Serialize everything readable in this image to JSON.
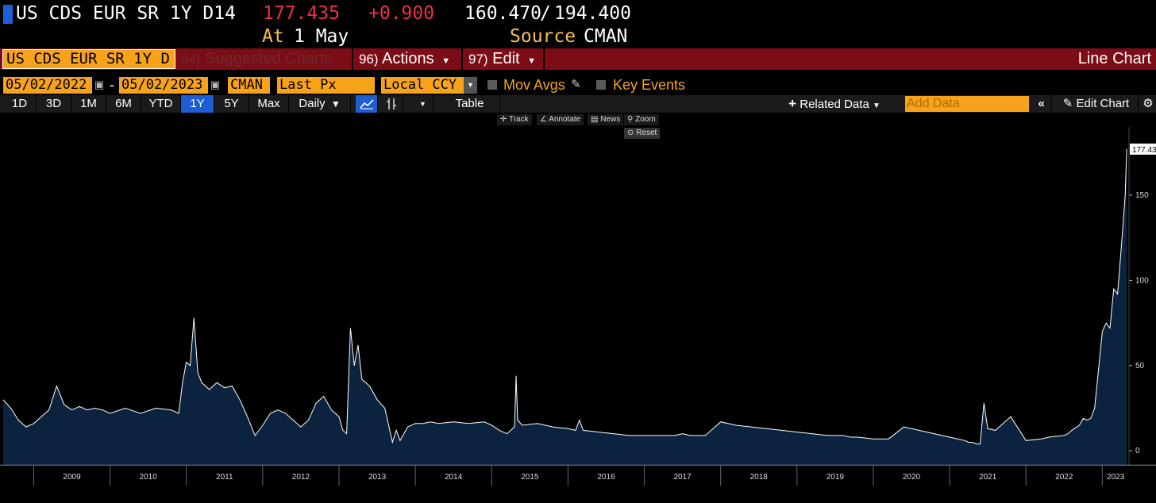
{
  "header": {
    "security": "US CDS EUR SR 1Y D14",
    "last_price": "177.435",
    "change": "+0.900",
    "range_low": "160.470",
    "range_sep": "/",
    "range_high": "194.400",
    "at_label": "At",
    "at_date": "1 May",
    "source_label": "Source",
    "source_value": "CMAN"
  },
  "toolbar1": {
    "ticker_field": "US CDS EUR SR 1Y D",
    "suggested_num": "94)",
    "suggested_label": "Suggested Charts",
    "actions_num": "96)",
    "actions_label": "Actions",
    "edit_num": "97)",
    "edit_label": "Edit",
    "chart_type": "Line Chart"
  },
  "toolbar2": {
    "start_date": "05/02/2022",
    "dash": "-",
    "end_date": "05/02/2023",
    "source": "CMAN",
    "field": "Last Px",
    "currency": "Local CCY",
    "mov_avgs": "Mov Avgs",
    "key_events": "Key Events"
  },
  "toolbar3": {
    "periods": [
      "1D",
      "3D",
      "1M",
      "6M",
      "YTD",
      "1Y",
      "5Y",
      "Max"
    ],
    "active_period": "1Y",
    "frequency": "Daily",
    "table": "Table",
    "related_data": "Related Data",
    "add_data_placeholder": "Add Data",
    "edit_chart": "Edit Chart"
  },
  "chart_controls": {
    "track": "Track",
    "annotate": "Annotate",
    "news": "News",
    "zoom": "Zoom",
    "reset": "Reset"
  },
  "colors": {
    "accent_orange": "#f7a21b",
    "toolbar_red": "#7c0d16",
    "price_red": "#e8304a",
    "active_blue": "#1d5fd1",
    "area_fill": "#0c2340",
    "line": "#ffffff"
  },
  "chart_data": {
    "type": "area",
    "last_value_label": "177.435",
    "y_ticks": [
      0,
      50,
      100,
      150
    ],
    "ylim": [
      -12,
      190
    ],
    "x_ticks": [
      "2009",
      "2010",
      "2011",
      "2012",
      "2013",
      "2014",
      "2015",
      "2016",
      "2017",
      "2018",
      "2019",
      "2020",
      "2021",
      "2022",
      "2023"
    ],
    "xlim": [
      2008.6,
      2023.35
    ],
    "x": [
      2008.6,
      2008.7,
      2008.8,
      2008.9,
      2009.0,
      2009.1,
      2009.2,
      2009.3,
      2009.4,
      2009.5,
      2009.6,
      2009.7,
      2009.8,
      2009.9,
      2010.0,
      2010.2,
      2010.4,
      2010.6,
      2010.8,
      2010.9,
      2010.95,
      2011.0,
      2011.05,
      2011.1,
      2011.15,
      2011.2,
      2011.3,
      2011.4,
      2011.5,
      2011.6,
      2011.7,
      2011.8,
      2011.9,
      2012.0,
      2012.1,
      2012.2,
      2012.3,
      2012.4,
      2012.5,
      2012.6,
      2012.7,
      2012.8,
      2012.9,
      2013.0,
      2013.05,
      2013.1,
      2013.15,
      2013.2,
      2013.25,
      2013.3,
      2013.4,
      2013.5,
      2013.6,
      2013.7,
      2013.75,
      2013.8,
      2013.9,
      2014.0,
      2014.1,
      2014.2,
      2014.3,
      2014.5,
      2014.7,
      2014.9,
      2015.0,
      2015.1,
      2015.2,
      2015.3,
      2015.32,
      2015.34,
      2015.4,
      2015.6,
      2015.8,
      2016.0,
      2016.1,
      2016.15,
      2016.2,
      2016.4,
      2016.6,
      2016.8,
      2017.0,
      2017.2,
      2017.4,
      2017.5,
      2017.6,
      2017.8,
      2018.0,
      2018.2,
      2018.4,
      2018.6,
      2018.8,
      2019.0,
      2019.2,
      2019.4,
      2019.6,
      2019.7,
      2019.8,
      2020.0,
      2020.2,
      2020.4,
      2020.6,
      2020.8,
      2021.0,
      2021.2,
      2021.25,
      2021.3,
      2021.35,
      2021.4,
      2021.45,
      2021.5,
      2021.6,
      2021.8,
      2022.0,
      2022.2,
      2022.3,
      2022.5,
      2022.55,
      2022.6,
      2022.7,
      2022.75,
      2022.8,
      2022.85,
      2022.9,
      2023.0,
      2023.05,
      2023.1,
      2023.15,
      2023.2,
      2023.25,
      2023.3,
      2023.32
    ],
    "y": [
      30,
      25,
      18,
      14,
      16,
      20,
      24,
      38,
      27,
      24,
      26,
      24,
      25,
      24,
      22,
      25,
      22,
      25,
      24,
      22,
      40,
      52,
      50,
      78,
      46,
      40,
      36,
      40,
      37,
      38,
      30,
      20,
      9,
      15,
      22,
      24,
      22,
      18,
      14,
      18,
      28,
      32,
      24,
      20,
      12,
      10,
      72,
      50,
      62,
      42,
      38,
      30,
      25,
      5,
      12,
      6,
      14,
      16,
      16,
      17,
      16,
      17,
      16,
      17,
      15,
      12,
      10,
      14,
      44,
      18,
      15,
      16,
      14,
      13,
      12,
      18,
      12,
      11,
      10,
      9,
      9,
      9,
      9,
      10,
      9,
      9,
      17,
      15,
      14,
      13,
      12,
      11,
      10,
      9,
      9,
      8,
      8,
      7,
      7,
      14,
      12,
      10,
      8,
      6,
      5,
      5,
      4,
      4,
      28,
      13,
      12,
      20,
      6,
      7,
      8,
      9,
      10,
      12,
      15,
      19,
      18,
      19,
      25,
      70,
      75,
      72,
      95,
      92,
      120,
      150,
      177
    ]
  }
}
